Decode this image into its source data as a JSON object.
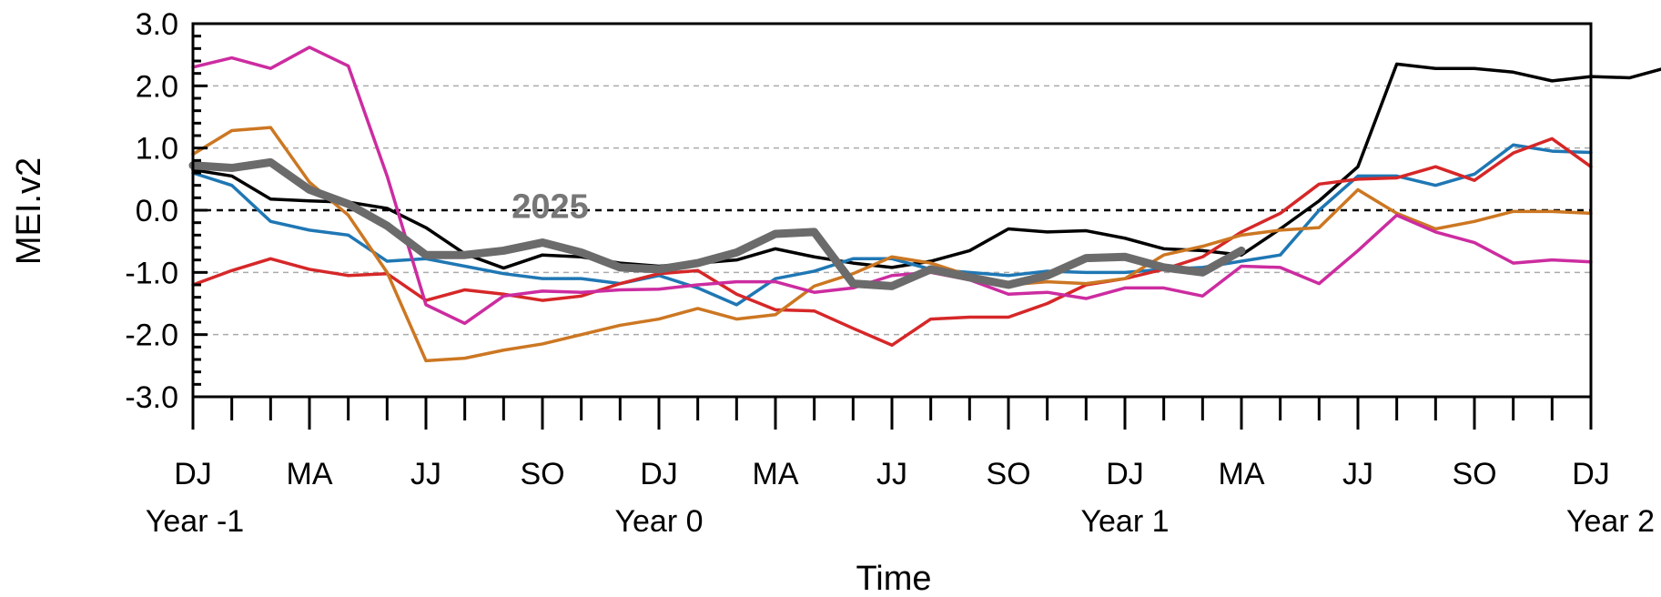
{
  "chart_data": {
    "type": "line",
    "xlabel": "Time",
    "ylabel": "MEI.v2",
    "ylim": [
      -3.0,
      3.0
    ],
    "yticks": [
      -3.0,
      -2.0,
      -1.0,
      0.0,
      1.0,
      2.0,
      3.0
    ],
    "ytick_labels": [
      "-3.0",
      "-2.0",
      "-1.0",
      "0.0",
      "1.0",
      "2.0",
      "3.0"
    ],
    "y_minor_step": 0.2,
    "xlim": [
      0,
      36
    ],
    "xticks": [
      0,
      3,
      6,
      9,
      12,
      15,
      18,
      21,
      24,
      27,
      30,
      33,
      36
    ],
    "xtick_labels": [
      "DJ",
      "MA",
      "JJ",
      "SO",
      "DJ",
      "MA",
      "JJ",
      "SO",
      "DJ",
      "MA",
      "JJ",
      "SO",
      "DJ"
    ],
    "year_labels": [
      {
        "x": 0,
        "text": "Year -1"
      },
      {
        "x": 12,
        "text": "Year 0"
      },
      {
        "x": 24,
        "text": "Year 1"
      },
      {
        "x": 36,
        "text": "Year 2"
      }
    ],
    "zero_line": "dashed",
    "grid": "dashed horizontal at major ticks",
    "annotation": {
      "text": "2025",
      "x": 9.2,
      "y": 0.05
    },
    "series": [
      {
        "color": "#000000",
        "width": 3.5,
        "values": [
          0.65,
          0.55,
          0.18,
          0.15,
          0.13,
          0.03,
          -0.28,
          -0.7,
          -0.93,
          -0.72,
          -0.75,
          -0.85,
          -0.9,
          -0.85,
          -0.8,
          -0.62,
          -0.75,
          -0.85,
          -0.92,
          -0.82,
          -0.65,
          -0.3,
          -0.35,
          -0.33,
          -0.45,
          -0.62,
          -0.65,
          -0.72,
          -0.3,
          0.15,
          0.7,
          2.35,
          2.28,
          2.28,
          2.22,
          2.08,
          2.15,
          2.13,
          2.3
        ]
      },
      {
        "color": "#1f77b4",
        "width": 3.5,
        "values": [
          0.6,
          0.4,
          -0.18,
          -0.32,
          -0.4,
          -0.82,
          -0.78,
          -0.9,
          -1.02,
          -1.1,
          -1.1,
          -1.18,
          -1.05,
          -1.25,
          -1.52,
          -1.1,
          -0.98,
          -0.78,
          -0.78,
          -0.95,
          -1.0,
          -1.05,
          -0.98,
          -1.0,
          -1.0,
          -0.95,
          -0.92,
          -0.82,
          -0.72,
          0.0,
          0.55,
          0.55,
          0.4,
          0.58,
          1.05,
          0.95,
          0.93
        ]
      },
      {
        "color": "#d62728",
        "width": 3.5,
        "values": [
          -1.2,
          -0.97,
          -0.78,
          -0.95,
          -1.05,
          -1.02,
          -1.45,
          -1.28,
          -1.35,
          -1.45,
          -1.38,
          -1.18,
          -1.02,
          -0.97,
          -1.35,
          -1.6,
          -1.62,
          -1.9,
          -2.17,
          -1.75,
          -1.72,
          -1.72,
          -1.5,
          -1.2,
          -1.1,
          -0.95,
          -0.75,
          -0.35,
          -0.05,
          0.42,
          0.5,
          0.52,
          0.7,
          0.48,
          0.92,
          1.15,
          0.7
        ]
      },
      {
        "color": "#cc7722",
        "width": 3.5,
        "values": [
          0.9,
          1.28,
          1.33,
          0.45,
          -0.08,
          -1.0,
          -2.42,
          -2.38,
          -2.25,
          -2.15,
          -2.0,
          -1.85,
          -1.75,
          -1.58,
          -1.75,
          -1.68,
          -1.22,
          -1.02,
          -0.75,
          -0.85,
          -1.05,
          -1.2,
          -1.15,
          -1.18,
          -1.1,
          -0.72,
          -0.58,
          -0.4,
          -0.32,
          -0.28,
          0.33,
          -0.05,
          -0.3,
          -0.18,
          -0.02,
          -0.02,
          -0.05
        ]
      },
      {
        "color": "#cc2ca0",
        "width": 3.5,
        "values": [
          2.3,
          2.45,
          2.28,
          2.62,
          2.32,
          0.55,
          -1.52,
          -1.82,
          -1.38,
          -1.3,
          -1.32,
          -1.28,
          -1.27,
          -1.2,
          -1.15,
          -1.15,
          -1.32,
          -1.25,
          -1.05,
          -1.0,
          -1.12,
          -1.35,
          -1.32,
          -1.42,
          -1.25,
          -1.25,
          -1.38,
          -0.9,
          -0.92,
          -1.18,
          -0.65,
          -0.08,
          -0.35,
          -0.52,
          -0.85,
          -0.8,
          -0.83
        ]
      },
      {
        "name": "2025",
        "color": "#6b6b6b",
        "width": 9,
        "values": [
          0.72,
          0.68,
          0.77,
          0.33,
          0.1,
          -0.25,
          -0.72,
          -0.72,
          -0.65,
          -0.52,
          -0.68,
          -0.92,
          -0.95,
          -0.85,
          -0.68,
          -0.38,
          -0.35,
          -1.18,
          -1.22,
          -0.95,
          -1.08,
          -1.2,
          -1.05,
          -0.77,
          -0.75,
          -0.92,
          -1.0,
          -0.65
        ]
      }
    ]
  }
}
